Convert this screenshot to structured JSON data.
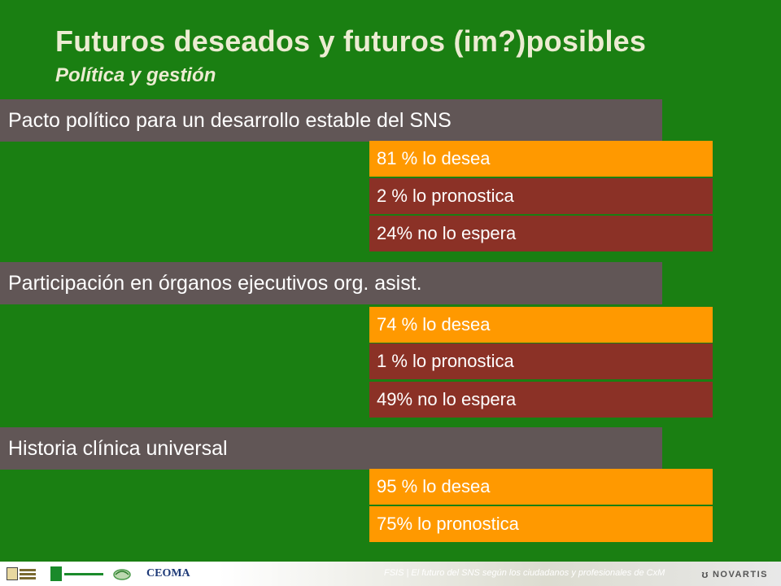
{
  "slide": {
    "title": "Futuros deseados y futuros (im?)posibles",
    "subtitle": "Política y gestión"
  },
  "sections": [
    {
      "header": "Pacto político para un desarrollo estable del SNS",
      "results": [
        {
          "label": "81 % lo desea",
          "color": "#ff9900"
        },
        {
          "label": "2 % lo pronostica",
          "color": "#8b3126"
        },
        {
          "label": "24% no lo espera",
          "color": "#8b3126"
        }
      ]
    },
    {
      "header": "Participación en órganos ejecutivos org. asist.",
      "results": [
        {
          "label": "74 % lo desea",
          "color": "#ff9900"
        },
        {
          "label": "1 % lo pronostica",
          "color": "#8b3126"
        },
        {
          "label": "49% no lo espera",
          "color": "#8b3126"
        }
      ]
    },
    {
      "header": "Historia clínica universal",
      "results": [
        {
          "label": "95 % lo desea",
          "color": "#ff9900"
        },
        {
          "label": "75% lo pronostica",
          "color": "#ff9900"
        }
      ]
    }
  ],
  "footer": {
    "text": "FSIS | El futuro del SNS según los ciudadanos y profesionales de CxM",
    "brand": "NOVARTIS",
    "logos": [
      "fsis-logo",
      "foro-pacientes-logo",
      "leaf-logo",
      "CEOMA"
    ]
  },
  "colors": {
    "background": "#1a7f12",
    "header_bar": "#615656",
    "desire_bar": "#ff9900",
    "forecast_bar": "#8b3126",
    "title_text": "#ececd2"
  }
}
